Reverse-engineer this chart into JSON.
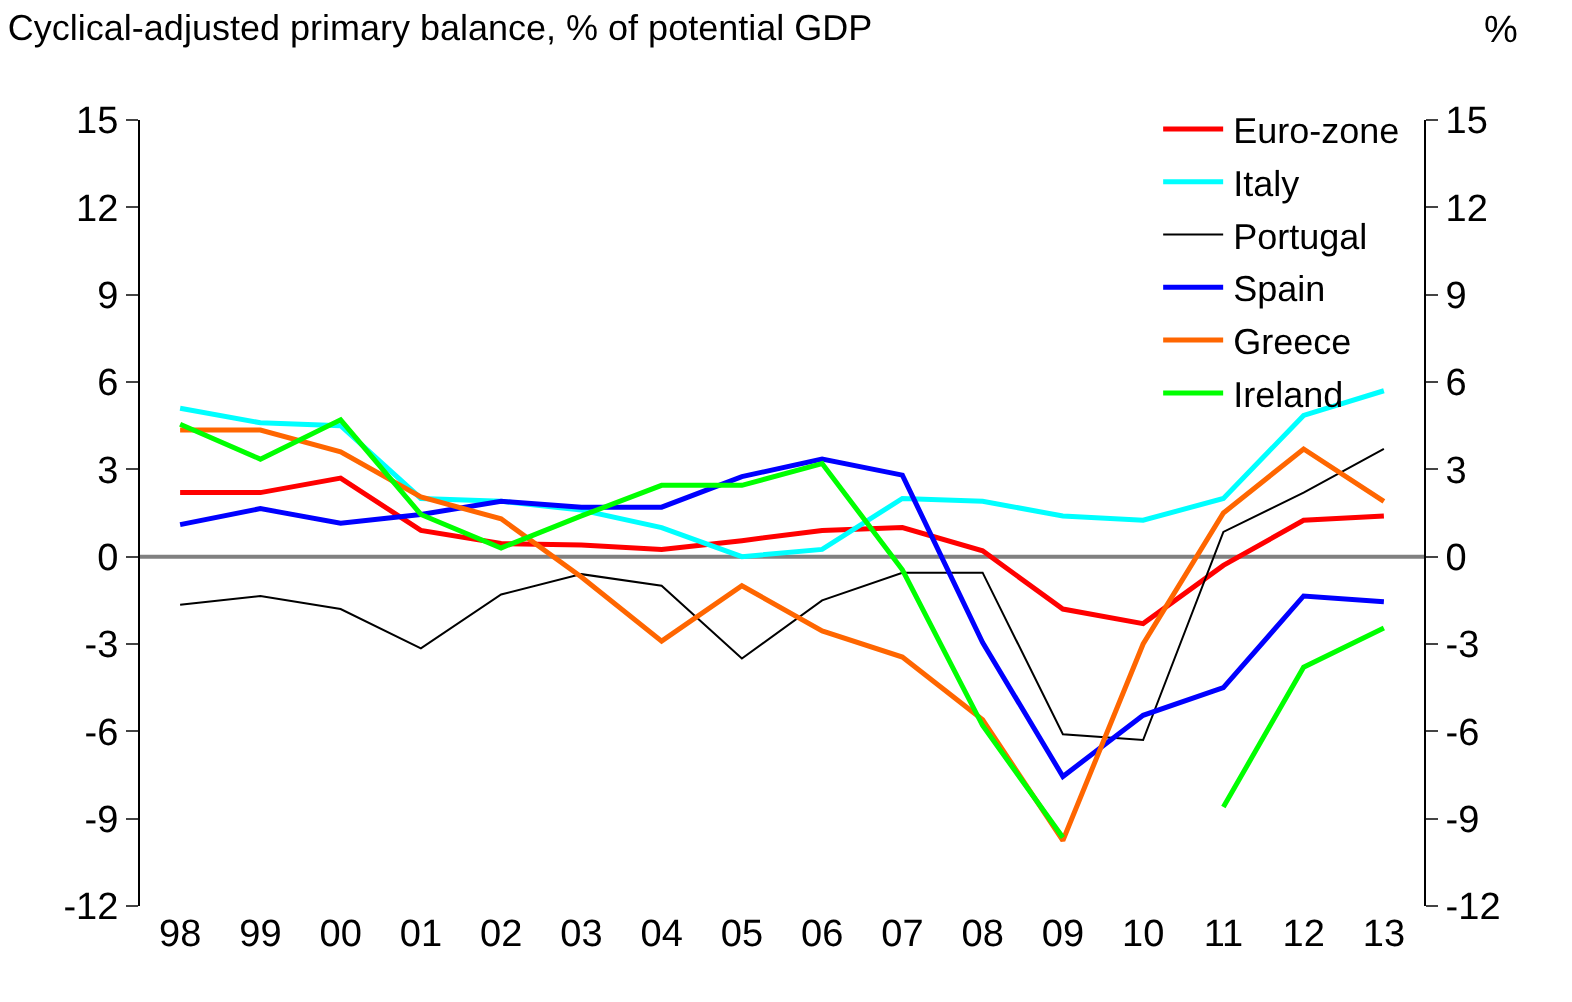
{
  "chart_data": {
    "type": "line",
    "title": "Cyclical-adjusted primary balance, % of potential GDP",
    "y2label": "%",
    "categories": [
      "98",
      "99",
      "00",
      "01",
      "02",
      "03",
      "04",
      "05",
      "06",
      "07",
      "08",
      "09",
      "10",
      "11",
      "12",
      "13"
    ],
    "series": [
      {
        "name": "Euro-zone",
        "color": "#ff0000",
        "values": [
          2.2,
          2.2,
          2.7,
          0.9,
          0.45,
          0.4,
          0.25,
          0.55,
          0.9,
          1.0,
          0.2,
          -1.8,
          -2.3,
          -0.3,
          1.25,
          1.4
        ]
      },
      {
        "name": "Italy",
        "color": "#00ffff",
        "values": [
          5.1,
          4.6,
          4.5,
          2.0,
          1.9,
          1.6,
          1.0,
          0.0,
          0.25,
          2.0,
          1.9,
          1.4,
          1.25,
          2.0,
          4.85,
          5.7
        ]
      },
      {
        "name": "Portugal",
        "color": "#000000",
        "values": [
          -1.65,
          -1.35,
          -1.8,
          -3.15,
          -1.3,
          -0.6,
          -1.0,
          -3.5,
          -1.5,
          -0.55,
          -0.55,
          -6.1,
          -6.3,
          0.85,
          2.2,
          3.7
        ]
      },
      {
        "name": "Spain",
        "color": "#0000ff",
        "values": [
          1.1,
          1.65,
          1.15,
          1.45,
          1.9,
          1.7,
          1.7,
          2.75,
          3.35,
          2.8,
          -2.95,
          -7.55,
          -5.45,
          -4.5,
          -1.35,
          -1.55
        ]
      },
      {
        "name": "Greece",
        "color": "#ff6600",
        "values": [
          4.35,
          4.35,
          3.6,
          2.05,
          1.3,
          -0.7,
          -2.9,
          -1.0,
          -2.55,
          -3.45,
          -5.6,
          -9.75,
          -3.0,
          1.5,
          3.7,
          1.9
        ]
      },
      {
        "name": "Ireland",
        "color": "#00ff00",
        "values": [
          4.55,
          3.35,
          4.7,
          1.45,
          0.3,
          1.4,
          2.45,
          2.45,
          3.2,
          -0.45,
          -5.8,
          -9.65,
          null,
          -8.6,
          -3.8,
          -2.45
        ]
      }
    ],
    "ylim": [
      -12,
      15
    ],
    "yticks": [
      -12,
      -9,
      -6,
      -3,
      0,
      3,
      6,
      9,
      12,
      15
    ],
    "y2lim": [
      -12,
      15
    ],
    "y2ticks": [
      -12,
      -9,
      -6,
      -3,
      0,
      3,
      6,
      9,
      12,
      15
    ],
    "ref_lines": [
      {
        "axis": "y",
        "value": 0,
        "color": "#808080"
      }
    ],
    "legend": "top right",
    "grid": false,
    "marker": "none",
    "line_style": "solid"
  }
}
